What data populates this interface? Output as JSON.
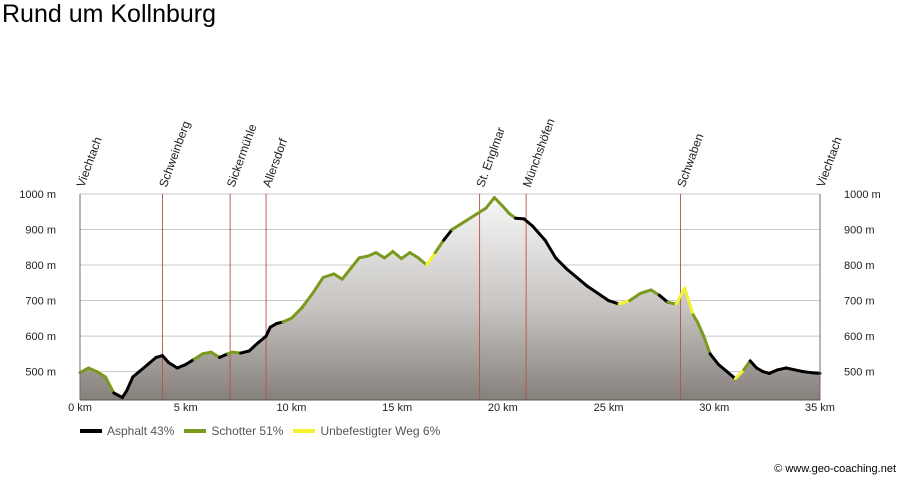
{
  "title": "Rund um Kollnburg",
  "credit": "© www.geo-coaching.net",
  "colors": {
    "Asphalt": "#000000",
    "Schotter": "#7a9a1e",
    "Unbefestigter Weg": "#f2f230"
  },
  "legend": [
    {
      "key": "Asphalt",
      "label": "Asphalt 43%"
    },
    {
      "key": "Schotter",
      "label": "Schotter 51%"
    },
    {
      "key": "Unbefestigter Weg",
      "label": "Unbefestigter Weg 6%"
    }
  ],
  "chart_data": {
    "type": "area",
    "title": "Rund um Kollnburg",
    "xlim": [
      0,
      35
    ],
    "ylim": [
      420,
      1000
    ],
    "x_ticks": [
      0,
      5,
      10,
      15,
      20,
      25,
      30,
      35
    ],
    "x_tick_labels": [
      "0 km",
      "5 km",
      "10 km",
      "15 km",
      "20 km",
      "25 km",
      "30 km",
      "35 km"
    ],
    "y_ticks": [
      500,
      600,
      700,
      800,
      900,
      1000
    ],
    "y_tick_labels": [
      "500 m",
      "600 m",
      "700 m",
      "800 m",
      "900 m",
      "1000 m"
    ],
    "grid": true,
    "waypoints": [
      {
        "name": "Viechtach",
        "x": 0
      },
      {
        "name": "Schweinberg",
        "x": 3.9
      },
      {
        "name": "Sickermühle",
        "x": 7.1
      },
      {
        "name": "Allersdorf",
        "x": 8.8
      },
      {
        "name": "St. Englmar",
        "x": 18.9
      },
      {
        "name": "Münchshöfen",
        "x": 21.1
      },
      {
        "name": "Schwaben",
        "x": 28.4
      },
      {
        "name": "Viechtach",
        "x": 35
      }
    ],
    "profile": {
      "x": [
        0,
        0.4,
        0.8,
        1.2,
        1.6,
        2.0,
        2.2,
        2.5,
        2.8,
        3.2,
        3.6,
        3.9,
        4.2,
        4.6,
        5.0,
        5.4,
        5.8,
        6.2,
        6.6,
        7.0,
        7.2,
        7.6,
        8.0,
        8.4,
        8.8,
        9.0,
        9.3,
        9.6,
        10.0,
        10.5,
        11.0,
        11.5,
        12.0,
        12.4,
        12.8,
        13.2,
        13.6,
        14.0,
        14.4,
        14.8,
        15.2,
        15.6,
        16.0,
        16.4,
        16.8,
        17.2,
        17.6,
        18.0,
        18.4,
        18.8,
        19.2,
        19.6,
        20.0,
        20.3,
        20.6,
        21.0,
        21.4,
        22.0,
        22.5,
        23.0,
        23.5,
        24.0,
        24.5,
        25.0,
        25.5,
        26.0,
        26.5,
        27.0,
        27.4,
        27.8,
        28.2,
        28.6,
        29.0,
        29.2,
        29.5,
        29.8,
        30.2,
        30.6,
        31.0,
        31.4,
        31.7,
        32.0,
        32.3,
        32.6,
        33.0,
        33.4,
        33.8,
        34.2,
        34.6,
        35.0
      ],
      "elevation": [
        497,
        510,
        500,
        485,
        440,
        427,
        445,
        485,
        500,
        520,
        540,
        545,
        525,
        510,
        520,
        535,
        550,
        555,
        540,
        550,
        555,
        552,
        558,
        580,
        600,
        625,
        635,
        640,
        650,
        680,
        720,
        765,
        775,
        760,
        790,
        820,
        825,
        835,
        820,
        838,
        818,
        835,
        820,
        800,
        835,
        870,
        900,
        915,
        930,
        945,
        960,
        990,
        965,
        945,
        932,
        930,
        910,
        870,
        820,
        790,
        765,
        740,
        720,
        700,
        690,
        700,
        720,
        730,
        715,
        695,
        690,
        735,
        660,
        640,
        600,
        550,
        520,
        500,
        480,
        505,
        530,
        510,
        500,
        495,
        505,
        510,
        505,
        500,
        497,
        495
      ],
      "surface": [
        "Schotter",
        "Schotter",
        "Schotter",
        "Schotter",
        "Asphalt",
        "Asphalt",
        "Asphalt",
        "Asphalt",
        "Asphalt",
        "Asphalt",
        "Asphalt",
        "Asphalt",
        "Asphalt",
        "Asphalt",
        "Asphalt",
        "Schotter",
        "Schotter",
        "Schotter",
        "Asphalt",
        "Schotter",
        "Schotter",
        "Asphalt",
        "Asphalt",
        "Asphalt",
        "Asphalt",
        "Asphalt",
        "Asphalt",
        "Schotter",
        "Schotter",
        "Schotter",
        "Schotter",
        "Schotter",
        "Schotter",
        "Schotter",
        "Schotter",
        "Schotter",
        "Schotter",
        "Schotter",
        "Schotter",
        "Schotter",
        "Schotter",
        "Schotter",
        "Schotter",
        "Unbefestigter Weg",
        "Schotter",
        "Asphalt",
        "Schotter",
        "Schotter",
        "Schotter",
        "Schotter",
        "Schotter",
        "Schotter",
        "Schotter",
        "Schotter",
        "Asphalt",
        "Asphalt",
        "Asphalt",
        "Asphalt",
        "Asphalt",
        "Asphalt",
        "Asphalt",
        "Asphalt",
        "Asphalt",
        "Asphalt",
        "Unbefestigter Weg",
        "Schotter",
        "Schotter",
        "Schotter",
        "Asphalt",
        "Schotter",
        "Unbefestigter Weg",
        "Unbefestigter Weg",
        "Schotter",
        "Schotter",
        "Schotter",
        "Asphalt",
        "Asphalt",
        "Asphalt",
        "Unbefestigter Weg",
        "Schotter",
        "Asphalt",
        "Asphalt",
        "Asphalt",
        "Asphalt",
        "Asphalt",
        "Asphalt",
        "Asphalt",
        "Asphalt",
        "Asphalt"
      ]
    }
  }
}
